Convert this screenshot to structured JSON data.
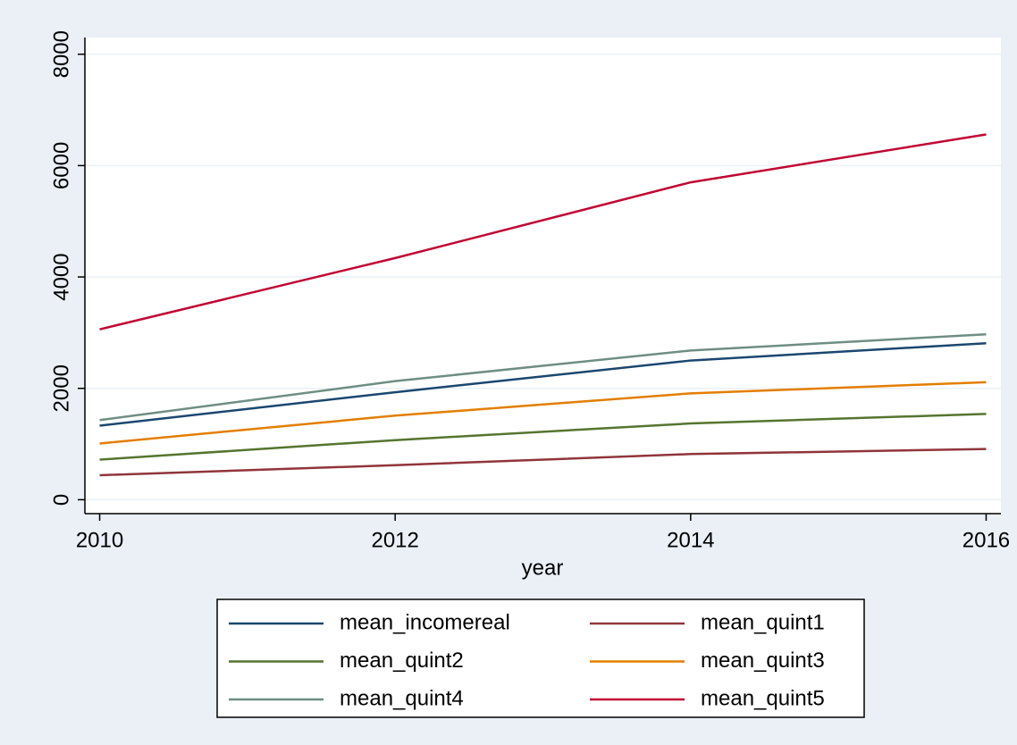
{
  "chart_data": {
    "type": "line",
    "x": [
      2010,
      2012,
      2014,
      2016
    ],
    "xlabel": "year",
    "series": [
      {
        "name": "mean_incomereal",
        "color": "#1a476f",
        "values": [
          1330,
          1930,
          2500,
          2810
        ]
      },
      {
        "name": "mean_quint1",
        "color": "#90353b",
        "values": [
          440,
          620,
          820,
          910
        ]
      },
      {
        "name": "mean_quint2",
        "color": "#55752f",
        "values": [
          720,
          1070,
          1370,
          1540
        ]
      },
      {
        "name": "mean_quint3",
        "color": "#e37e00",
        "values": [
          1010,
          1510,
          1910,
          2110
        ]
      },
      {
        "name": "mean_quint4",
        "color": "#6e8e84",
        "values": [
          1430,
          2130,
          2680,
          2970
        ]
      },
      {
        "name": "mean_quint5",
        "color": "#c10534",
        "values": [
          3060,
          4340,
          5700,
          6560
        ]
      }
    ],
    "xlim": [
      2009.9,
      2016.1
    ],
    "xticks": [
      2010,
      2012,
      2014,
      2016
    ],
    "ylim": [
      -250,
      8300
    ],
    "yticks": [
      0,
      2000,
      4000,
      6000,
      8000
    ],
    "grid": true,
    "legend": "bottom"
  }
}
